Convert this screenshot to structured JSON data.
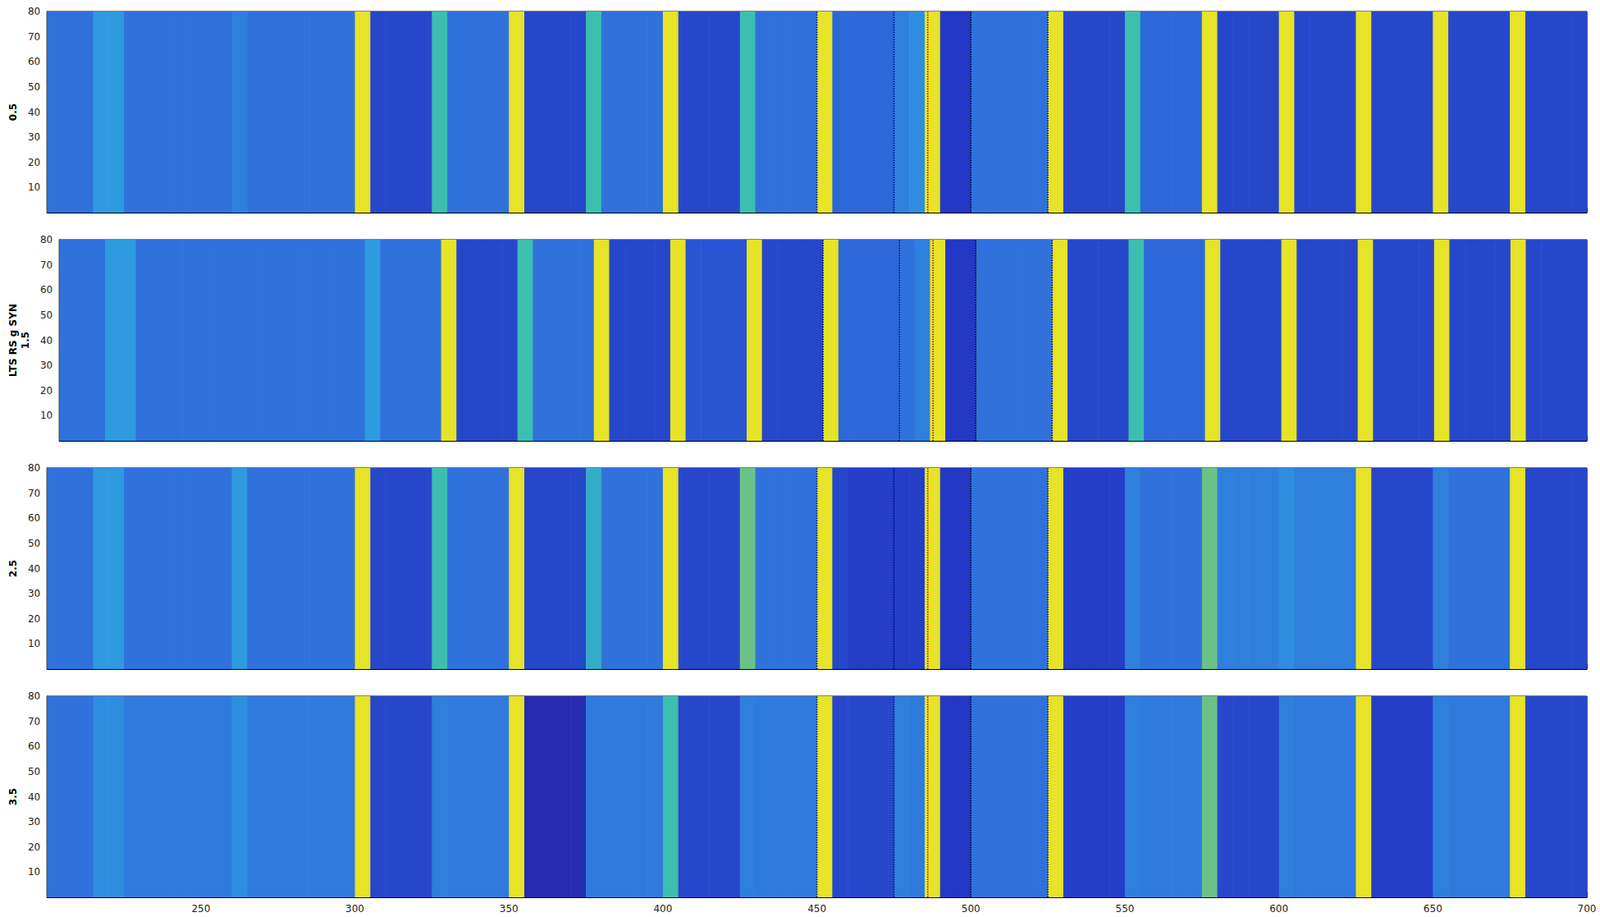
{
  "chart_data": [
    {
      "type": "heatmap",
      "ylabel": "0.5",
      "xlim": [
        200,
        700
      ],
      "ylim": [
        0,
        80
      ],
      "xticks": [
        250,
        300,
        350,
        400,
        450,
        500,
        550,
        600,
        650,
        700
      ],
      "yticks": [
        10,
        20,
        30,
        40,
        50,
        60,
        70,
        80
      ],
      "tick_labels": "y",
      "clim": [
        0,
        1
      ],
      "x": [
        200,
        205,
        210,
        215,
        220,
        225,
        230,
        235,
        240,
        245,
        250,
        255,
        260,
        265,
        270,
        275,
        280,
        285,
        290,
        295,
        300,
        305,
        310,
        315,
        320,
        325,
        330,
        335,
        340,
        345,
        350,
        355,
        360,
        365,
        370,
        375,
        380,
        385,
        390,
        395,
        400,
        405,
        410,
        415,
        420,
        425,
        430,
        435,
        440,
        445,
        450,
        455,
        460,
        465,
        470,
        475,
        480,
        485,
        490,
        495,
        500,
        505,
        510,
        515,
        520,
        525,
        530,
        535,
        540,
        545,
        550,
        555,
        560,
        565,
        570,
        575,
        580,
        585,
        590,
        595,
        600,
        605,
        610,
        615,
        620,
        625,
        630,
        635,
        640,
        645,
        650,
        655,
        660,
        665,
        670,
        675,
        680,
        685,
        690,
        695
      ],
      "values": [
        0.35,
        0.35,
        0.35,
        0.5,
        0.5,
        0.35,
        0.35,
        0.35,
        0.35,
        0.35,
        0.35,
        0.35,
        0.4,
        0.35,
        0.35,
        0.35,
        0.35,
        0.35,
        0.35,
        0.35,
        0.95,
        0.15,
        0.15,
        0.15,
        0.15,
        0.7,
        0.35,
        0.35,
        0.35,
        0.35,
        0.95,
        0.15,
        0.15,
        0.15,
        0.15,
        0.7,
        0.35,
        0.35,
        0.35,
        0.35,
        0.95,
        0.15,
        0.15,
        0.15,
        0.15,
        0.7,
        0.35,
        0.35,
        0.35,
        0.35,
        0.95,
        0.3,
        0.3,
        0.3,
        0.3,
        0.4,
        0.45,
        0.95,
        0.1,
        0.1,
        0.35,
        0.35,
        0.35,
        0.35,
        0.35,
        0.95,
        0.15,
        0.15,
        0.15,
        0.15,
        0.7,
        0.3,
        0.3,
        0.3,
        0.3,
        0.95,
        0.15,
        0.15,
        0.15,
        0.15,
        0.95,
        0.15,
        0.15,
        0.15,
        0.15,
        0.95,
        0.15,
        0.15,
        0.15,
        0.15,
        0.95,
        0.15,
        0.15,
        0.15,
        0.15,
        0.95,
        0.15,
        0.15,
        0.15,
        0.15
      ],
      "vlines": [
        {
          "x": 450,
          "color": "#000080",
          "line_style": "dotted"
        },
        {
          "x": 475,
          "color": "#000080",
          "line_style": "dotted"
        },
        {
          "x": 486,
          "color": "#c00000",
          "line_style": "dotted"
        },
        {
          "x": 500,
          "color": "#000000",
          "line_style": "dotted"
        },
        {
          "x": 525,
          "color": "#000080",
          "line_style": "dotted"
        }
      ]
    },
    {
      "type": "heatmap",
      "ylabel": "LTS RS g SYN\n1.5",
      "xlim": [
        200,
        700
      ],
      "ylim": [
        0,
        80
      ],
      "xticks": [
        250,
        300,
        350,
        400,
        450,
        500,
        550,
        600,
        650,
        700
      ],
      "yticks": [
        10,
        20,
        30,
        40,
        50,
        60,
        70,
        80
      ],
      "tick_labels": "y",
      "clim": [
        0,
        1
      ],
      "x": [
        200,
        205,
        210,
        215,
        220,
        225,
        230,
        235,
        240,
        245,
        250,
        255,
        260,
        265,
        270,
        275,
        280,
        285,
        290,
        295,
        300,
        305,
        310,
        315,
        320,
        325,
        330,
        335,
        340,
        345,
        350,
        355,
        360,
        365,
        370,
        375,
        380,
        385,
        390,
        395,
        400,
        405,
        410,
        415,
        420,
        425,
        430,
        435,
        440,
        445,
        450,
        455,
        460,
        465,
        470,
        475,
        480,
        485,
        490,
        495,
        500,
        505,
        510,
        515,
        520,
        525,
        530,
        535,
        540,
        545,
        550,
        555,
        560,
        565,
        570,
        575,
        580,
        585,
        590,
        595,
        600,
        605,
        610,
        615,
        620,
        625,
        630,
        635,
        640,
        645,
        650,
        655,
        660,
        665,
        670,
        675,
        680,
        685,
        690,
        695
      ],
      "values": [
        0.35,
        0.35,
        0.35,
        0.5,
        0.5,
        0.35,
        0.35,
        0.35,
        0.35,
        0.35,
        0.35,
        0.35,
        0.35,
        0.35,
        0.35,
        0.35,
        0.35,
        0.35,
        0.35,
        0.35,
        0.5,
        0.35,
        0.35,
        0.35,
        0.35,
        0.95,
        0.15,
        0.15,
        0.15,
        0.15,
        0.7,
        0.35,
        0.35,
        0.35,
        0.35,
        0.95,
        0.15,
        0.15,
        0.15,
        0.15,
        0.95,
        0.2,
        0.2,
        0.2,
        0.2,
        0.95,
        0.15,
        0.15,
        0.15,
        0.15,
        0.95,
        0.3,
        0.3,
        0.3,
        0.3,
        0.35,
        0.4,
        0.95,
        0.1,
        0.1,
        0.35,
        0.35,
        0.35,
        0.35,
        0.35,
        0.95,
        0.15,
        0.15,
        0.15,
        0.15,
        0.7,
        0.3,
        0.3,
        0.3,
        0.3,
        0.95,
        0.15,
        0.15,
        0.15,
        0.15,
        0.95,
        0.15,
        0.15,
        0.15,
        0.15,
        0.95,
        0.15,
        0.15,
        0.15,
        0.15,
        0.95,
        0.15,
        0.15,
        0.15,
        0.15,
        0.95,
        0.15,
        0.15,
        0.15,
        0.15
      ],
      "vlines": [
        {
          "x": 450,
          "color": "#000080",
          "line_style": "dotted"
        },
        {
          "x": 475,
          "color": "#000080",
          "line_style": "dotted"
        },
        {
          "x": 486,
          "color": "#c00000",
          "line_style": "dotted"
        },
        {
          "x": 500,
          "color": "#000000",
          "line_style": "dotted"
        },
        {
          "x": 525,
          "color": "#000080",
          "line_style": "dotted"
        }
      ]
    },
    {
      "type": "heatmap",
      "ylabel": "2.5",
      "xlim": [
        200,
        700
      ],
      "ylim": [
        0,
        80
      ],
      "xticks": [
        250,
        300,
        350,
        400,
        450,
        500,
        550,
        600,
        650,
        700
      ],
      "yticks": [
        10,
        20,
        30,
        40,
        50,
        60,
        70,
        80
      ],
      "tick_labels": "y",
      "clim": [
        0,
        1
      ],
      "x": [
        200,
        205,
        210,
        215,
        220,
        225,
        230,
        235,
        240,
        245,
        250,
        255,
        260,
        265,
        270,
        275,
        280,
        285,
        290,
        295,
        300,
        305,
        310,
        315,
        320,
        325,
        330,
        335,
        340,
        345,
        350,
        355,
        360,
        365,
        370,
        375,
        380,
        385,
        390,
        395,
        400,
        405,
        410,
        415,
        420,
        425,
        430,
        435,
        440,
        445,
        450,
        455,
        460,
        465,
        470,
        475,
        480,
        485,
        490,
        495,
        500,
        505,
        510,
        515,
        520,
        525,
        530,
        535,
        540,
        545,
        550,
        555,
        560,
        565,
        570,
        575,
        580,
        585,
        590,
        595,
        600,
        605,
        610,
        615,
        620,
        625,
        630,
        635,
        640,
        645,
        650,
        655,
        660,
        665,
        670,
        675,
        680,
        685,
        690,
        695
      ],
      "values": [
        0.35,
        0.35,
        0.35,
        0.5,
        0.5,
        0.35,
        0.35,
        0.35,
        0.35,
        0.35,
        0.35,
        0.35,
        0.5,
        0.35,
        0.35,
        0.35,
        0.35,
        0.35,
        0.35,
        0.35,
        0.95,
        0.15,
        0.15,
        0.15,
        0.15,
        0.7,
        0.35,
        0.35,
        0.35,
        0.35,
        0.95,
        0.15,
        0.15,
        0.15,
        0.15,
        0.6,
        0.35,
        0.35,
        0.35,
        0.35,
        0.95,
        0.15,
        0.15,
        0.15,
        0.15,
        0.75,
        0.35,
        0.35,
        0.35,
        0.35,
        0.95,
        0.15,
        0.12,
        0.12,
        0.12,
        0.12,
        0.12,
        0.95,
        0.1,
        0.1,
        0.35,
        0.35,
        0.35,
        0.35,
        0.35,
        0.95,
        0.12,
        0.12,
        0.12,
        0.12,
        0.4,
        0.35,
        0.35,
        0.35,
        0.35,
        0.75,
        0.4,
        0.4,
        0.4,
        0.4,
        0.45,
        0.4,
        0.4,
        0.4,
        0.4,
        0.95,
        0.15,
        0.15,
        0.15,
        0.15,
        0.4,
        0.35,
        0.35,
        0.35,
        0.35,
        0.95,
        0.15,
        0.15,
        0.15,
        0.15
      ],
      "vlines": [
        {
          "x": 450,
          "color": "#000080",
          "line_style": "dotted"
        },
        {
          "x": 475,
          "color": "#000080",
          "line_style": "dotted"
        },
        {
          "x": 486,
          "color": "#c00000",
          "line_style": "dotted"
        },
        {
          "x": 500,
          "color": "#000000",
          "line_style": "dotted"
        },
        {
          "x": 525,
          "color": "#000080",
          "line_style": "dotted"
        }
      ]
    },
    {
      "type": "heatmap",
      "ylabel": "3.5",
      "xlim": [
        200,
        700
      ],
      "ylim": [
        0,
        80
      ],
      "xticks": [
        250,
        300,
        350,
        400,
        450,
        500,
        550,
        600,
        650,
        700
      ],
      "yticks": [
        10,
        20,
        30,
        40,
        50,
        60,
        70,
        80
      ],
      "clim": [
        0,
        1
      ],
      "x": [
        200,
        205,
        210,
        215,
        220,
        225,
        230,
        235,
        240,
        245,
        250,
        255,
        260,
        265,
        270,
        275,
        280,
        285,
        290,
        295,
        300,
        305,
        310,
        315,
        320,
        325,
        330,
        335,
        340,
        345,
        350,
        355,
        360,
        365,
        370,
        375,
        380,
        385,
        390,
        395,
        400,
        405,
        410,
        415,
        420,
        425,
        430,
        435,
        440,
        445,
        450,
        455,
        460,
        465,
        470,
        475,
        480,
        485,
        490,
        495,
        500,
        505,
        510,
        515,
        520,
        525,
        530,
        535,
        540,
        545,
        550,
        555,
        560,
        565,
        570,
        575,
        580,
        585,
        590,
        595,
        600,
        605,
        610,
        615,
        620,
        625,
        630,
        635,
        640,
        645,
        650,
        655,
        660,
        665,
        670,
        675,
        680,
        685,
        690,
        695
      ],
      "values": [
        0.35,
        0.35,
        0.35,
        0.45,
        0.45,
        0.38,
        0.38,
        0.38,
        0.38,
        0.38,
        0.38,
        0.38,
        0.45,
        0.38,
        0.38,
        0.38,
        0.38,
        0.38,
        0.38,
        0.38,
        0.95,
        0.15,
        0.15,
        0.15,
        0.15,
        0.4,
        0.38,
        0.38,
        0.38,
        0.38,
        0.95,
        0.05,
        0.05,
        0.05,
        0.05,
        0.38,
        0.38,
        0.38,
        0.38,
        0.38,
        0.7,
        0.15,
        0.15,
        0.15,
        0.15,
        0.4,
        0.38,
        0.38,
        0.38,
        0.38,
        0.95,
        0.15,
        0.15,
        0.15,
        0.15,
        0.4,
        0.38,
        0.95,
        0.1,
        0.1,
        0.35,
        0.35,
        0.35,
        0.35,
        0.35,
        0.95,
        0.12,
        0.12,
        0.12,
        0.12,
        0.4,
        0.38,
        0.38,
        0.38,
        0.38,
        0.75,
        0.15,
        0.15,
        0.15,
        0.15,
        0.4,
        0.38,
        0.38,
        0.38,
        0.38,
        0.95,
        0.12,
        0.12,
        0.12,
        0.12,
        0.4,
        0.38,
        0.38,
        0.38,
        0.38,
        0.95,
        0.15,
        0.15,
        0.15,
        0.15
      ],
      "vlines": [
        {
          "x": 450,
          "color": "#000080",
          "line_style": "dotted"
        },
        {
          "x": 475,
          "color": "#000080",
          "line_style": "dotted"
        },
        {
          "x": 486,
          "color": "#c00000",
          "line_style": "dotted"
        },
        {
          "x": 500,
          "color": "#000000",
          "line_style": "dotted"
        },
        {
          "x": 525,
          "color": "#000080",
          "line_style": "dotted"
        }
      ]
    }
  ]
}
